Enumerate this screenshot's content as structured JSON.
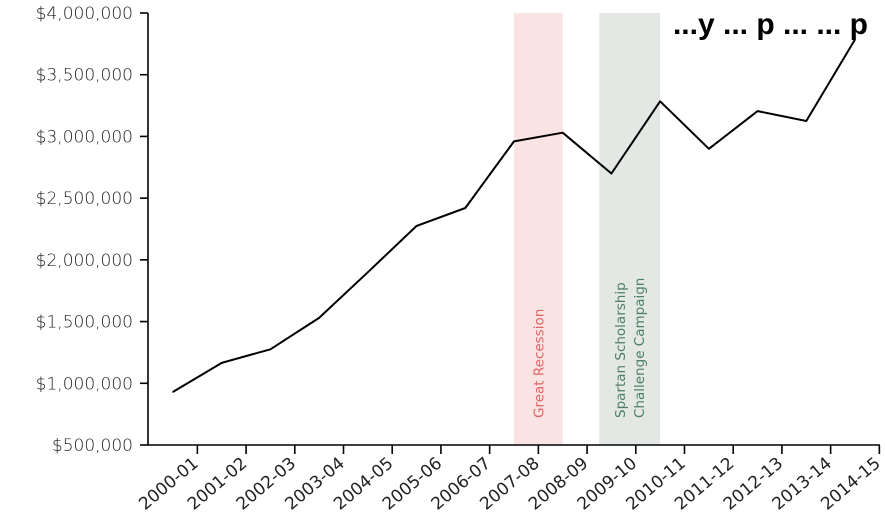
{
  "chart_data": {
    "type": "line",
    "title": "...y ... p ... ... p",
    "x": [
      "2000-01",
      "2001-02",
      "2002-03",
      "2003-04",
      "2004-05",
      "2005-06",
      "2006-07",
      "2007-08",
      "2008-09",
      "2009-10",
      "2010-11",
      "2011-12",
      "2012-13",
      "2013-14",
      "2014-15"
    ],
    "series": [
      {
        "values": [
          930000,
          1165000,
          1275000,
          1530000,
          1900000,
          2275000,
          2420000,
          2960000,
          3030000,
          2700000,
          3285000,
          2900000,
          3205000,
          3125000,
          3785000
        ]
      }
    ],
    "y_ticks": [
      "$500,000",
      "$1,000,000",
      "$1,500,000",
      "$2,000,000",
      "$2,500,000",
      "$3,000,000",
      "$3,500,000",
      "$4,000,000"
    ],
    "ylim": [
      500000,
      4000000
    ],
    "grid": false,
    "bands": [
      {
        "label": "Great Recession",
        "start": 7,
        "end": 8,
        "color": "#f9e3e3",
        "text_color": "#e06666"
      },
      {
        "label": "Spartan Scholarship Challenge Campaign",
        "lines": [
          "Spartan Scholarship",
          "Challenge Campaign"
        ],
        "start": 8.75,
        "end": 10,
        "color": "#e3e8e4",
        "text_color": "#4f7f63"
      }
    ],
    "colors": {
      "line": "#000000",
      "axis": "#000000"
    }
  }
}
